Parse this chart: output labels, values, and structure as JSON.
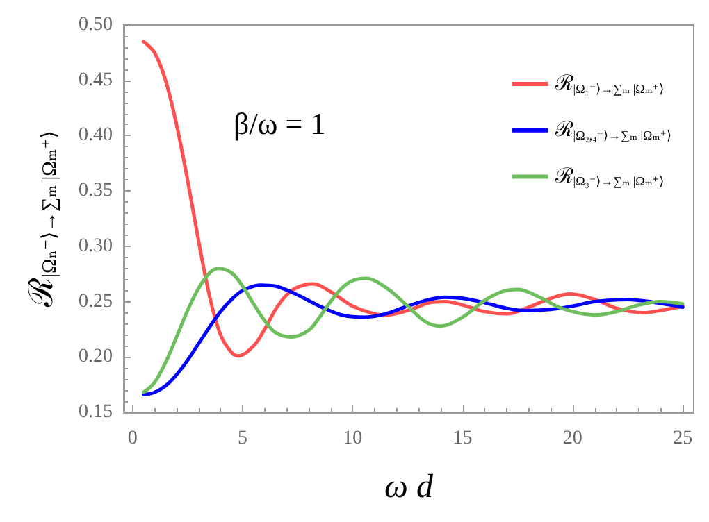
{
  "chart_data": {
    "type": "line",
    "xlabel": "ω d",
    "ylabel": "ℛ$_{|Ωₙ⁻⟩→∑ₘ |Ωₘ⁺⟩}$",
    "annotations": [
      "β/ω = 1"
    ],
    "xlim": [
      -0.4,
      25.5
    ],
    "xticks": [
      0,
      5,
      10,
      15,
      20,
      25
    ],
    "ylim": [
      0.15,
      0.5
    ],
    "yticks": [
      0.15,
      {
        "value": 0.2,
        "label": "0.20"
      },
      0.25,
      {
        "value": 0.3,
        "label": "0.30"
      },
      0.35,
      {
        "value": 0.4,
        "label": "0.40"
      },
      0.45,
      {
        "value": 0.5,
        "label": "0.50"
      }
    ],
    "grid": false,
    "legend": "top right",
    "marker": "none",
    "line_style": "solid",
    "series": [
      {
        "name": "ℛ$_{|Ω₁⁻⟩→∑ₘ |Ωₘ⁺⟩}$",
        "color": "#ff5050",
        "x": [
          0.5,
          1,
          1.5,
          2,
          2.5,
          3,
          3.5,
          4,
          4.5,
          4.8,
          5.5,
          6,
          6.5,
          7,
          7.5,
          8.2,
          9,
          10,
          11,
          11.5,
          12.5,
          13.5,
          14.2,
          15,
          16,
          17,
          18,
          19,
          19.9,
          21,
          22,
          23.2,
          24,
          25
        ],
        "values": [
          0.485,
          0.475,
          0.45,
          0.41,
          0.36,
          0.305,
          0.255,
          0.22,
          0.204,
          0.201,
          0.21,
          0.225,
          0.243,
          0.256,
          0.263,
          0.266,
          0.259,
          0.246,
          0.239,
          0.238,
          0.242,
          0.249,
          0.25,
          0.247,
          0.241,
          0.239,
          0.245,
          0.253,
          0.257,
          0.252,
          0.244,
          0.24,
          0.242,
          0.246
        ]
      },
      {
        "name": "ℛ$_{|Ω₂,₄⁻⟩→∑ₘ |Ωₘ⁺⟩}$",
        "color": "#0000ff",
        "x": [
          0.5,
          1,
          1.5,
          2,
          2.5,
          3,
          3.5,
          4,
          4.5,
          5,
          5.8,
          6.5,
          7.5,
          8.5,
          9.5,
          10.5,
          11.5,
          12.5,
          13.5,
          14.2,
          15,
          16,
          17,
          17.8,
          19,
          20,
          21,
          22.5,
          23.5,
          25
        ],
        "values": [
          0.166,
          0.168,
          0.174,
          0.184,
          0.197,
          0.212,
          0.227,
          0.241,
          0.252,
          0.26,
          0.265,
          0.264,
          0.256,
          0.246,
          0.238,
          0.236,
          0.239,
          0.246,
          0.252,
          0.254,
          0.253,
          0.249,
          0.244,
          0.242,
          0.243,
          0.246,
          0.25,
          0.252,
          0.25,
          0.245
        ]
      },
      {
        "name": "ℛ$_{|Ω₃⁻⟩→∑ₘ |Ωₘ⁺⟩}$",
        "color": "#6cbf5c",
        "x": [
          0.5,
          1,
          1.5,
          2,
          2.5,
          3,
          3.5,
          3.9,
          4.5,
          5,
          5.5,
          6,
          6.5,
          7.2,
          8,
          8.5,
          9,
          9.5,
          10,
          10.6,
          11.5,
          12.5,
          13.3,
          14,
          15,
          16,
          16.8,
          17.5,
          18.5,
          19.5,
          21,
          22,
          23,
          24,
          25
        ],
        "values": [
          0.168,
          0.177,
          0.195,
          0.218,
          0.242,
          0.262,
          0.276,
          0.28,
          0.276,
          0.264,
          0.248,
          0.233,
          0.222,
          0.218,
          0.224,
          0.236,
          0.25,
          0.262,
          0.269,
          0.271,
          0.263,
          0.246,
          0.232,
          0.228,
          0.236,
          0.251,
          0.259,
          0.261,
          0.254,
          0.244,
          0.238,
          0.241,
          0.247,
          0.25,
          0.248
        ]
      }
    ]
  }
}
